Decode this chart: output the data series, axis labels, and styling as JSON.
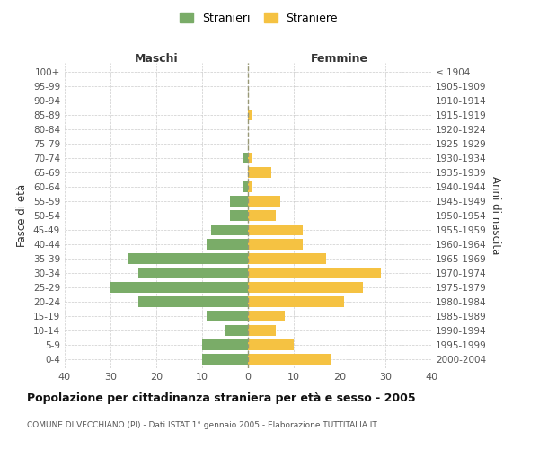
{
  "age_groups": [
    "100+",
    "95-99",
    "90-94",
    "85-89",
    "80-84",
    "75-79",
    "70-74",
    "65-69",
    "60-64",
    "55-59",
    "50-54",
    "45-49",
    "40-44",
    "35-39",
    "30-34",
    "25-29",
    "20-24",
    "15-19",
    "10-14",
    "5-9",
    "0-4"
  ],
  "birth_years": [
    "≤ 1904",
    "1905-1909",
    "1910-1914",
    "1915-1919",
    "1920-1924",
    "1925-1929",
    "1930-1934",
    "1935-1939",
    "1940-1944",
    "1945-1949",
    "1950-1954",
    "1955-1959",
    "1960-1964",
    "1965-1969",
    "1970-1974",
    "1975-1979",
    "1980-1984",
    "1985-1989",
    "1990-1994",
    "1995-1999",
    "2000-2004"
  ],
  "maschi": [
    0,
    0,
    0,
    0,
    0,
    0,
    1,
    0,
    1,
    4,
    4,
    8,
    9,
    26,
    24,
    30,
    24,
    9,
    5,
    10,
    10
  ],
  "femmine": [
    0,
    0,
    0,
    1,
    0,
    0,
    1,
    5,
    1,
    7,
    6,
    12,
    12,
    17,
    29,
    25,
    21,
    8,
    6,
    10,
    18
  ],
  "color_maschi": "#7aac68",
  "color_femmine": "#f5c242",
  "title": "Popolazione per cittadinanza straniera per età e sesso - 2005",
  "subtitle": "COMUNE DI VECCHIANO (PI) - Dati ISTAT 1° gennaio 2005 - Elaborazione TUTTITALIA.IT",
  "ylabel_left": "Fasce di età",
  "ylabel_right": "Anni di nascita",
  "xlabel_left": "Maschi",
  "xlabel_right": "Femmine",
  "legend_maschi": "Stranieri",
  "legend_femmine": "Straniere",
  "xlim": 40,
  "background_color": "#ffffff",
  "grid_color": "#cccccc"
}
